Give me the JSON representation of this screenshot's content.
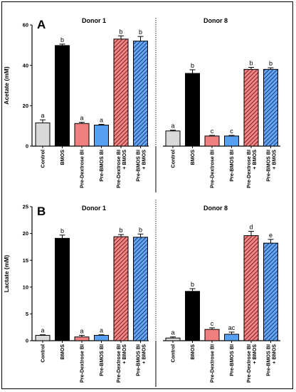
{
  "colors": {
    "Control": "#d9d9d9",
    "BMOS": "#000000",
    "Pre-Dextrose BI": "#f08080",
    "Pre-BMOS BI": "#55a0f0",
    "Pre-Dextrose BI + BMOS": "#b03a3a",
    "Pre-BMOS BI + BMOS": "#2f5fa8"
  },
  "chart_data": [
    {
      "type": "bar",
      "panel": "A",
      "ylabel": "Acetate (mM)",
      "ylim": [
        0,
        60
      ],
      "yticks": [
        0,
        20,
        40,
        60
      ],
      "categories": [
        "Control",
        "BMOS",
        "Pre-Dextrose BI",
        "Pre-BMOS BI",
        "Pre-Dextrose BI\n+ BMOS",
        "Pre-BMOS BI\n+ BMOS"
      ],
      "groups": [
        {
          "name": "Donor 1",
          "values": [
            11.5,
            49.8,
            11.2,
            10.4,
            53.0,
            52.0
          ],
          "errors": [
            1.5,
            0.7,
            0.6,
            0.4,
            1.6,
            2.3
          ],
          "letters": [
            "a",
            "b",
            "a",
            "a",
            "b",
            "b"
          ]
        },
        {
          "name": "Donor 8",
          "values": [
            7.5,
            36.0,
            5.0,
            5.0,
            38.0,
            38.0
          ],
          "errors": [
            0.4,
            1.8,
            0.3,
            0.3,
            1.0,
            0.8
          ],
          "letters": [
            "a",
            "b",
            "c",
            "c",
            "b",
            "b"
          ]
        }
      ]
    },
    {
      "type": "bar",
      "panel": "B",
      "ylabel": "Lactate (mM)",
      "ylim": [
        0,
        25
      ],
      "yticks": [
        0,
        5,
        10,
        15,
        20,
        25
      ],
      "categories": [
        "Control",
        "BMOS",
        "Pre-Dextrose BI",
        "Pre-BMOS BI",
        "Pre-Dextrose BI\n+ BMOS",
        "Pre-BMOS BI\n+ BMOS"
      ],
      "groups": [
        {
          "name": "Donor 1",
          "values": [
            1.0,
            19.1,
            0.7,
            1.0,
            19.4,
            19.3
          ],
          "errors": [
            0.1,
            0.6,
            0.3,
            0.1,
            0.4,
            0.6
          ],
          "letters": [
            "a",
            "b",
            "a",
            "a",
            "b",
            "b"
          ]
        },
        {
          "name": "Donor 8",
          "values": [
            0.5,
            9.2,
            2.1,
            1.2,
            19.6,
            18.2
          ],
          "errors": [
            0.2,
            0.5,
            0.3,
            0.4,
            0.8,
            0.7
          ],
          "letters": [
            "a",
            "b",
            "c",
            "ac",
            "d",
            "e"
          ]
        }
      ]
    }
  ]
}
